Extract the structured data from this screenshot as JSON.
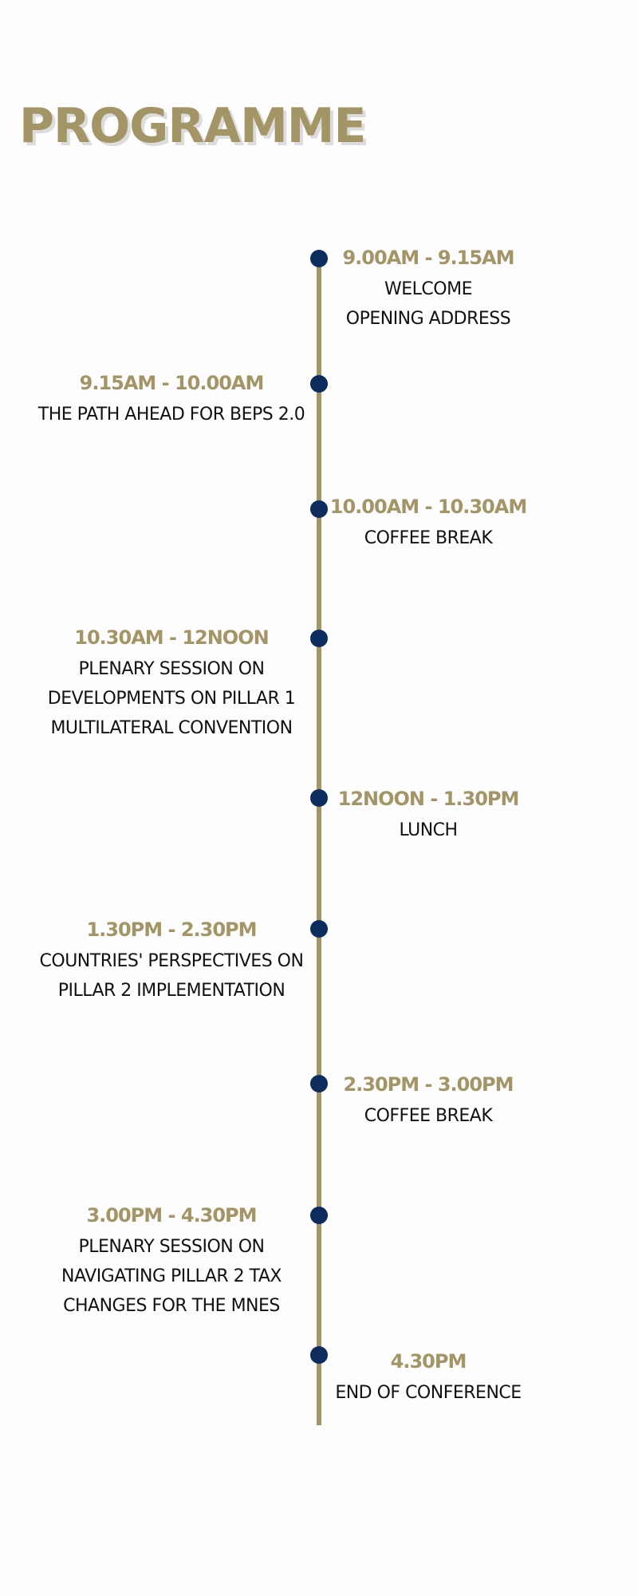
{
  "title": "PROGRAMME",
  "colors": {
    "accent": "#a39566",
    "dot": "#0b2c5c",
    "text": "#111111"
  },
  "events": [
    {
      "side": "right",
      "time": "9.00AM - 9.15AM",
      "lines": [
        "WELCOME",
        "OPENING ADDRESS"
      ]
    },
    {
      "side": "left",
      "time": "9.15AM - 10.00AM",
      "lines": [
        "THE PATH AHEAD FOR BEPS 2.0"
      ]
    },
    {
      "side": "right",
      "time": "10.00AM - 10.30AM",
      "lines": [
        "COFFEE BREAK"
      ]
    },
    {
      "side": "left",
      "time": "10.30AM - 12NOON",
      "lines": [
        "PLENARY SESSION ON",
        "DEVELOPMENTS ON PILLAR 1",
        "MULTILATERAL CONVENTION"
      ]
    },
    {
      "side": "right",
      "time": "12NOON - 1.30PM",
      "lines": [
        "LUNCH"
      ]
    },
    {
      "side": "left",
      "time": "1.30PM - 2.30PM",
      "lines": [
        "COUNTRIES' PERSPECTIVES ON",
        "PILLAR 2 IMPLEMENTATION"
      ]
    },
    {
      "side": "right",
      "time": "2.30PM - 3.00PM",
      "lines": [
        "COFFEE BREAK"
      ]
    },
    {
      "side": "left",
      "time": "3.00PM - 4.30PM",
      "lines": [
        "PLENARY SESSION ON",
        "NAVIGATING PILLAR 2 TAX",
        "CHANGES FOR THE MNES"
      ]
    },
    {
      "side": "right",
      "time": "4.30PM",
      "lines": [
        "END OF CONFERENCE"
      ]
    }
  ]
}
